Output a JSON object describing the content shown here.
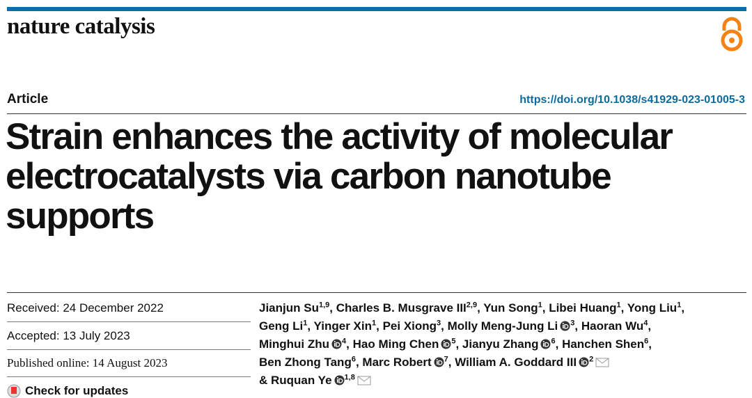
{
  "header": {
    "journal": "nature catalysis",
    "article_type": "Article",
    "doi": "https://doi.org/10.1038/s41929-023-01005-3"
  },
  "title_lines": [
    "Strain enhances the activity of molecular",
    "electrocatalysts via carbon nanotube",
    "supports"
  ],
  "dates": {
    "received": "Received: 24 December 2022",
    "accepted": "Accepted: 13 July 2023",
    "published": "Published online: 14 August 2023",
    "updates": "Check for updates"
  },
  "authors": {
    "lines": [
      [
        {
          "name": "Jianjun Su",
          "sup": "1,9",
          "after": ", "
        },
        {
          "name": "Charles B. Musgrave III",
          "sup": "2,9",
          "after": ", "
        },
        {
          "name": "Yun Song",
          "sup": "1",
          "after": ", "
        },
        {
          "name": "Libei Huang",
          "sup": "1",
          "after": ", "
        },
        {
          "name": "Yong Liu",
          "sup": "1",
          "after": ","
        }
      ],
      [
        {
          "name": "Geng Li",
          "sup": "1",
          "after": ", "
        },
        {
          "name": "Yinger Xin",
          "sup": "1",
          "after": ", "
        },
        {
          "name": "Pei Xiong",
          "sup": "3",
          "after": ", "
        },
        {
          "name": "Molly Meng-Jung Li",
          "orcid": true,
          "sup": "3",
          "after": ", "
        },
        {
          "name": "Haoran Wu",
          "sup": "4",
          "after": ","
        }
      ],
      [
        {
          "name": "Minghui Zhu",
          "orcid": true,
          "sup": "4",
          "after": ", "
        },
        {
          "name": "Hao Ming Chen",
          "orcid": true,
          "sup": "5",
          "after": ", "
        },
        {
          "name": "Jianyu Zhang",
          "orcid": true,
          "sup": "6",
          "after": ", "
        },
        {
          "name": "Hanchen Shen",
          "sup": "6",
          "after": ","
        }
      ],
      [
        {
          "name": "Ben Zhong Tang",
          "sup": "6",
          "after": ", "
        },
        {
          "name": "Marc Robert",
          "orcid": true,
          "sup": "7",
          "after": ", "
        },
        {
          "name": "William A. Goddard III",
          "orcid": true,
          "sup": "2",
          "mail": true
        }
      ],
      [
        {
          "name": "& Ruquan Ye",
          "orcid": true,
          "sup": "1,8",
          "mail": true
        }
      ]
    ]
  }
}
